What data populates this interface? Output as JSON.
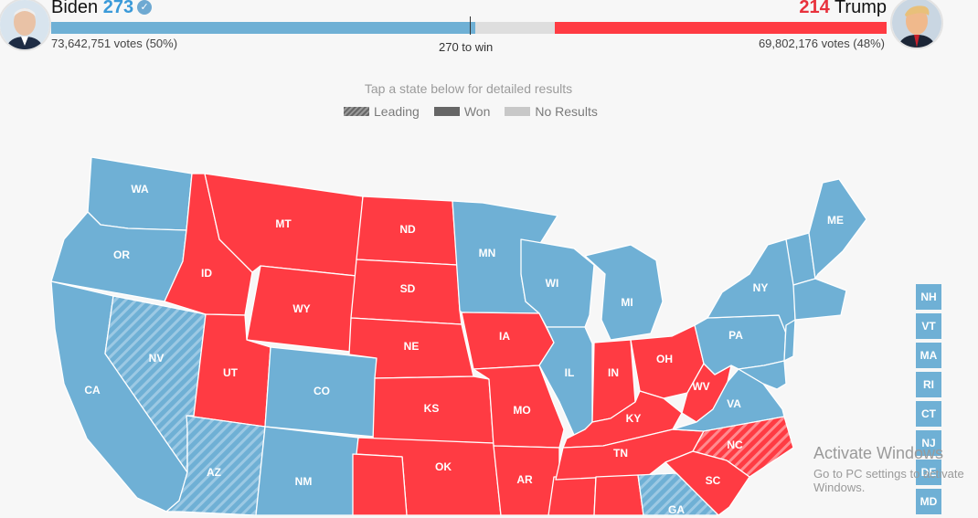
{
  "header": {
    "dem": {
      "name": "Biden",
      "ev": "273",
      "votes": "73,642,751 votes (50%)",
      "avatar_icon": "biden-portrait-icon",
      "color": "#6fb0d5"
    },
    "rep": {
      "name": "Trump",
      "ev": "214",
      "votes": "69,802,176 votes (48%)",
      "avatar_icon": "trump-portrait-icon",
      "color": "#ff3b43"
    },
    "win_label": "270 to win"
  },
  "hint": "Tap a state below for detailed results",
  "legend": {
    "leading": "Leading",
    "won": "Won",
    "no_results": "No Results"
  },
  "colors": {
    "dem": "#6fb0d5",
    "rep": "#ff3b43",
    "dem_leading": "hatched-blue",
    "rep_leading": "hatched-red"
  },
  "states": {
    "WA": {
      "label": "WA",
      "status": "dem"
    },
    "OR": {
      "label": "OR",
      "status": "dem"
    },
    "CA": {
      "label": "CA",
      "status": "dem"
    },
    "NV": {
      "label": "NV",
      "status": "dem-leading"
    },
    "ID": {
      "label": "ID",
      "status": "rep"
    },
    "MT": {
      "label": "MT",
      "status": "rep"
    },
    "WY": {
      "label": "WY",
      "status": "rep"
    },
    "UT": {
      "label": "UT",
      "status": "rep"
    },
    "AZ": {
      "label": "AZ",
      "status": "dem-leading"
    },
    "CO": {
      "label": "CO",
      "status": "dem"
    },
    "NM": {
      "label": "NM",
      "status": "dem"
    },
    "ND": {
      "label": "ND",
      "status": "rep"
    },
    "SD": {
      "label": "SD",
      "status": "rep"
    },
    "NE": {
      "label": "NE",
      "status": "rep"
    },
    "KS": {
      "label": "KS",
      "status": "rep"
    },
    "OK": {
      "label": "OK",
      "status": "rep"
    },
    "MN": {
      "label": "MN",
      "status": "dem"
    },
    "IA": {
      "label": "IA",
      "status": "rep"
    },
    "MO": {
      "label": "MO",
      "status": "rep"
    },
    "AR": {
      "label": "AR",
      "status": "rep"
    },
    "WI": {
      "label": "WI",
      "status": "dem"
    },
    "IL": {
      "label": "IL",
      "status": "dem"
    },
    "MI": {
      "label": "MI",
      "status": "dem"
    },
    "IN": {
      "label": "IN",
      "status": "rep"
    },
    "OH": {
      "label": "OH",
      "status": "rep"
    },
    "KY": {
      "label": "KY",
      "status": "rep"
    },
    "TN": {
      "label": "TN",
      "status": "rep"
    },
    "WV": {
      "label": "WV",
      "status": "rep"
    },
    "VA": {
      "label": "VA",
      "status": "dem"
    },
    "NC": {
      "label": "NC",
      "status": "rep-leading"
    },
    "SC": {
      "label": "SC",
      "status": "rep"
    },
    "GA": {
      "label": "GA",
      "status": "dem-leading"
    },
    "PA": {
      "label": "PA",
      "status": "dem"
    },
    "NY": {
      "label": "NY",
      "status": "dem"
    },
    "ME": {
      "label": "ME",
      "status": "dem"
    }
  },
  "small_states": [
    "NH",
    "VT",
    "MA",
    "RI",
    "CT",
    "NJ",
    "DE",
    "MD"
  ],
  "watermark": {
    "line1": "Activate Windows",
    "line2": "Go to PC settings to activate Windows."
  }
}
